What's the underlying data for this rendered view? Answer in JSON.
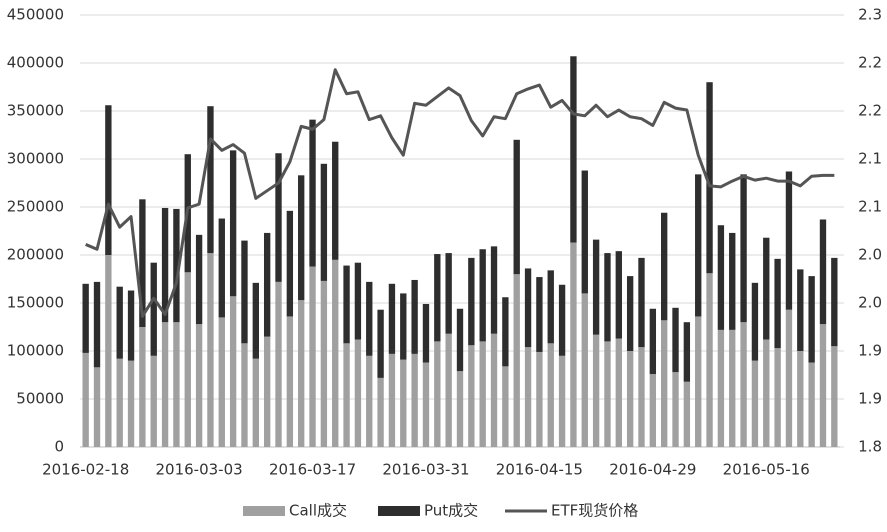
{
  "chart_data": {
    "type": "combo",
    "stacked": true,
    "grid": true,
    "categories": [
      "2016-02-18",
      null,
      null,
      null,
      null,
      null,
      null,
      null,
      null,
      null,
      "2016-03-03",
      null,
      null,
      null,
      null,
      null,
      null,
      null,
      null,
      null,
      "2016-03-17",
      null,
      null,
      null,
      null,
      null,
      null,
      null,
      null,
      null,
      "2016-03-31",
      null,
      null,
      null,
      null,
      null,
      null,
      null,
      null,
      null,
      "2016-04-15",
      null,
      null,
      null,
      null,
      null,
      null,
      null,
      null,
      null,
      "2016-04-29",
      null,
      null,
      null,
      null,
      null,
      null,
      null,
      null,
      null,
      "2016-05-16",
      null,
      null,
      null,
      null,
      null,
      null
    ],
    "series": [
      {
        "name": "Call成交",
        "type": "bar",
        "color": "#a0a0a0",
        "values": [
          98000,
          83000,
          200000,
          92000,
          90000,
          125000,
          95000,
          130000,
          130000,
          182000,
          128000,
          202000,
          135000,
          157000,
          108000,
          92000,
          115000,
          172000,
          136000,
          153000,
          188000,
          173000,
          195000,
          108000,
          112000,
          95000,
          72000,
          97000,
          91000,
          97000,
          88000,
          110000,
          118000,
          79000,
          106000,
          110000,
          118000,
          84000,
          180000,
          104000,
          99000,
          108000,
          95000,
          213000,
          160000,
          117000,
          110000,
          113000,
          100000,
          104000,
          76000,
          132000,
          78000,
          68000,
          136000,
          181000,
          122000,
          122000,
          130000,
          90000,
          112000,
          103000,
          143000,
          100000,
          88000,
          128000,
          105000
        ]
      },
      {
        "name": "Put成交",
        "type": "bar",
        "color": "#2e2e2e",
        "values": [
          72000,
          89000,
          156000,
          75000,
          73000,
          133000,
          97000,
          119000,
          118000,
          123000,
          93000,
          153000,
          103000,
          152000,
          107000,
          79000,
          108000,
          134000,
          110000,
          130000,
          153000,
          122000,
          123000,
          81000,
          80000,
          77000,
          71000,
          73000,
          69000,
          77000,
          61000,
          91000,
          84000,
          65000,
          91000,
          96000,
          91000,
          72000,
          140000,
          82000,
          78000,
          76000,
          74000,
          194000,
          128000,
          99000,
          92000,
          91000,
          78000,
          93000,
          68000,
          112000,
          67000,
          62000,
          148000,
          199000,
          109000,
          101000,
          154000,
          81000,
          106000,
          93000,
          144000,
          85000,
          90000,
          109000,
          92000
        ]
      },
      {
        "name": "ETF现货价格",
        "type": "line",
        "axis": "y2",
        "color": "#555555",
        "values": [
          2.011,
          2.006,
          2.053,
          2.029,
          2.04,
          1.936,
          1.955,
          1.938,
          1.971,
          2.049,
          2.053,
          2.121,
          2.109,
          2.115,
          2.106,
          2.059,
          2.067,
          2.075,
          2.097,
          2.134,
          2.131,
          2.141,
          2.193,
          2.168,
          2.17,
          2.141,
          2.145,
          2.122,
          2.104,
          2.158,
          2.156,
          2.165,
          2.174,
          2.166,
          2.14,
          2.124,
          2.144,
          2.142,
          2.168,
          2.173,
          2.177,
          2.154,
          2.161,
          2.147,
          2.145,
          2.156,
          2.144,
          2.151,
          2.144,
          2.142,
          2.135,
          2.159,
          2.153,
          2.151,
          2.104,
          2.072,
          2.071,
          2.077,
          2.082,
          2.078,
          2.08,
          2.077,
          2.077,
          2.072,
          2.082,
          2.083,
          2.083
        ]
      }
    ],
    "ylim": [
      0,
      450000
    ],
    "yticks": [
      0,
      50000,
      100000,
      150000,
      200000,
      250000,
      300000,
      350000,
      400000,
      450000
    ],
    "y2lim": [
      1.8,
      2.25
    ],
    "y2ticks": [
      1.8,
      {
        "value": 1.85,
        "label": "1.9"
      },
      1.9,
      {
        "value": 1.95,
        "label": "2.0"
      },
      {
        "value": 2,
        "label": "2.0"
      },
      {
        "value": 2.05,
        "label": "2.1"
      },
      2.1,
      {
        "value": 2.15,
        "label": "2.2"
      },
      2.2,
      {
        "value": 2.25,
        "label": "2.3"
      }
    ]
  }
}
